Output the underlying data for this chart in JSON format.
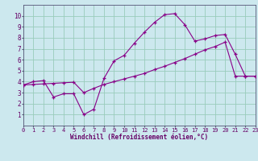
{
  "xlabel": "Windchill (Refroidissement éolien,°C)",
  "bg_color": "#cce8ee",
  "grid_color": "#99ccbb",
  "line_color": "#880088",
  "line1_x": [
    0,
    1,
    2,
    3,
    4,
    5,
    6,
    7,
    8,
    9,
    10,
    11,
    12,
    13,
    14,
    15,
    16,
    17,
    18,
    19,
    20,
    21,
    22,
    23
  ],
  "line1_y": [
    3.7,
    4.0,
    4.1,
    2.6,
    2.9,
    2.9,
    1.0,
    1.5,
    4.3,
    5.9,
    6.4,
    7.5,
    8.5,
    9.4,
    10.1,
    10.2,
    9.2,
    7.7,
    7.9,
    8.2,
    8.3,
    6.5,
    4.5,
    4.5
  ],
  "line2_x": [
    0,
    1,
    2,
    3,
    4,
    5,
    6,
    7,
    8,
    9,
    10,
    11,
    12,
    13,
    14,
    15,
    16,
    17,
    18,
    19,
    20,
    21,
    22,
    23
  ],
  "line2_y": [
    3.7,
    3.75,
    3.8,
    3.85,
    3.9,
    3.95,
    3.0,
    3.4,
    3.75,
    4.0,
    4.25,
    4.5,
    4.75,
    5.1,
    5.4,
    5.75,
    6.1,
    6.5,
    6.9,
    7.2,
    7.6,
    4.5,
    4.5,
    4.5
  ],
  "xlim": [
    0,
    23
  ],
  "ylim": [
    0,
    11
  ],
  "xticks": [
    0,
    1,
    2,
    3,
    4,
    5,
    6,
    7,
    8,
    9,
    10,
    11,
    12,
    13,
    14,
    15,
    16,
    17,
    18,
    19,
    20,
    21,
    22,
    23
  ],
  "yticks": [
    1,
    2,
    3,
    4,
    5,
    6,
    7,
    8,
    9,
    10
  ],
  "tick_fontsize": 5.0,
  "xlabel_fontsize": 5.5,
  "tick_color": "#660066",
  "spine_color": "#555577"
}
